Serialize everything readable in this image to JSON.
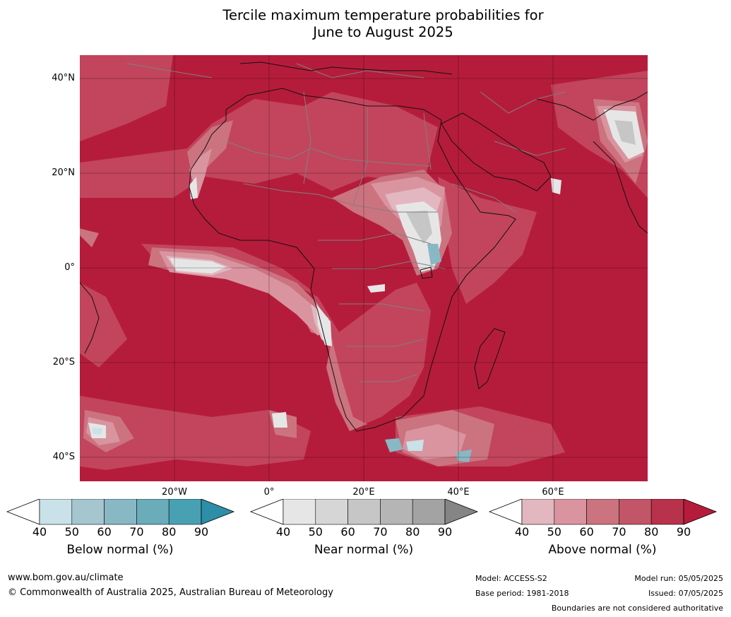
{
  "title_line1": "Tercile maximum temperature probabilities for",
  "title_line2": "June to August 2025",
  "lat_labels": [
    "40°N",
    "20°N",
    "0°",
    "20°S",
    "40°S"
  ],
  "lon_labels": [
    "20°W",
    "0°",
    "20°E",
    "40°E",
    "60°E"
  ],
  "colorbars": [
    {
      "title": "Below normal (%)",
      "ticks": [
        "40",
        "50",
        "60",
        "70",
        "80",
        "90"
      ],
      "colors": [
        "#ffffff",
        "#c9e1e8",
        "#a6c6cf",
        "#88b8c4",
        "#6aacb9",
        "#48a1b3",
        "#2c8fa7"
      ]
    },
    {
      "title": "Near normal (%)",
      "ticks": [
        "40",
        "50",
        "60",
        "70",
        "80",
        "90"
      ],
      "colors": [
        "#ffffff",
        "#e6e6e6",
        "#d6d6d6",
        "#c6c6c6",
        "#b5b5b5",
        "#a3a3a3",
        "#858585"
      ]
    },
    {
      "title": "Above normal (%)",
      "ticks": [
        "40",
        "50",
        "60",
        "70",
        "80",
        "90"
      ],
      "colors": [
        "#ffffff",
        "#e2b7bf",
        "#d9949f",
        "#cc7380",
        "#c25567",
        "#b7324a",
        "#b51c3b"
      ]
    }
  ],
  "footer": {
    "website": "www.bom.gov.au/climate",
    "copyright": "© Commonwealth of Australia 2025, Australian Bureau of Meteorology",
    "model": "Model: ACCESS-S2",
    "base_period": "Base period: 1981-2018",
    "model_run": "Model run: 05/05/2025",
    "issued": "Issued: 07/05/2025",
    "disclaimer": "Boundaries are not considered authoritative"
  }
}
